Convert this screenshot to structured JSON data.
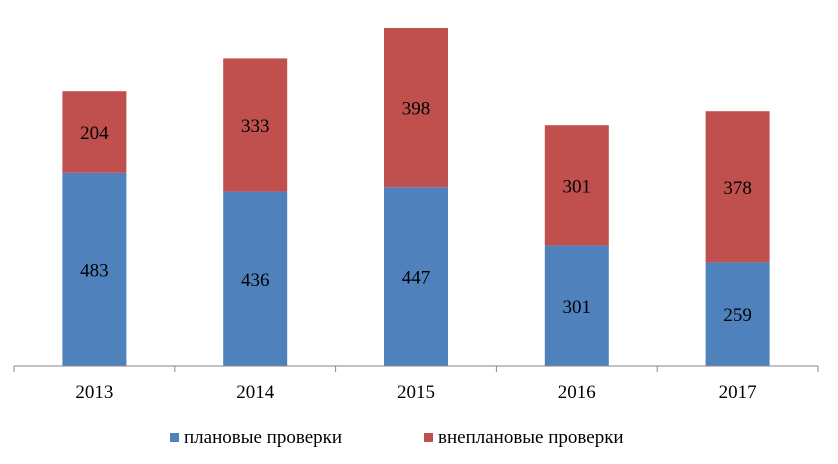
{
  "chart_data": {
    "type": "bar",
    "stacked": true,
    "categories": [
      "2013",
      "2014",
      "2015",
      "2016",
      "2017"
    ],
    "series": [
      {
        "name": "плановые проверки",
        "values": [
          483,
          436,
          447,
          301,
          259
        ],
        "color": "#4F81BD"
      },
      {
        "name": "внеплановые проверки",
        "values": [
          204,
          333,
          398,
          301,
          378
        ],
        "color": "#C0504D"
      }
    ],
    "title": "",
    "xlabel": "",
    "ylabel": "",
    "ylim": [
      0,
      850
    ],
    "grid": false,
    "legend_position": "bottom"
  }
}
